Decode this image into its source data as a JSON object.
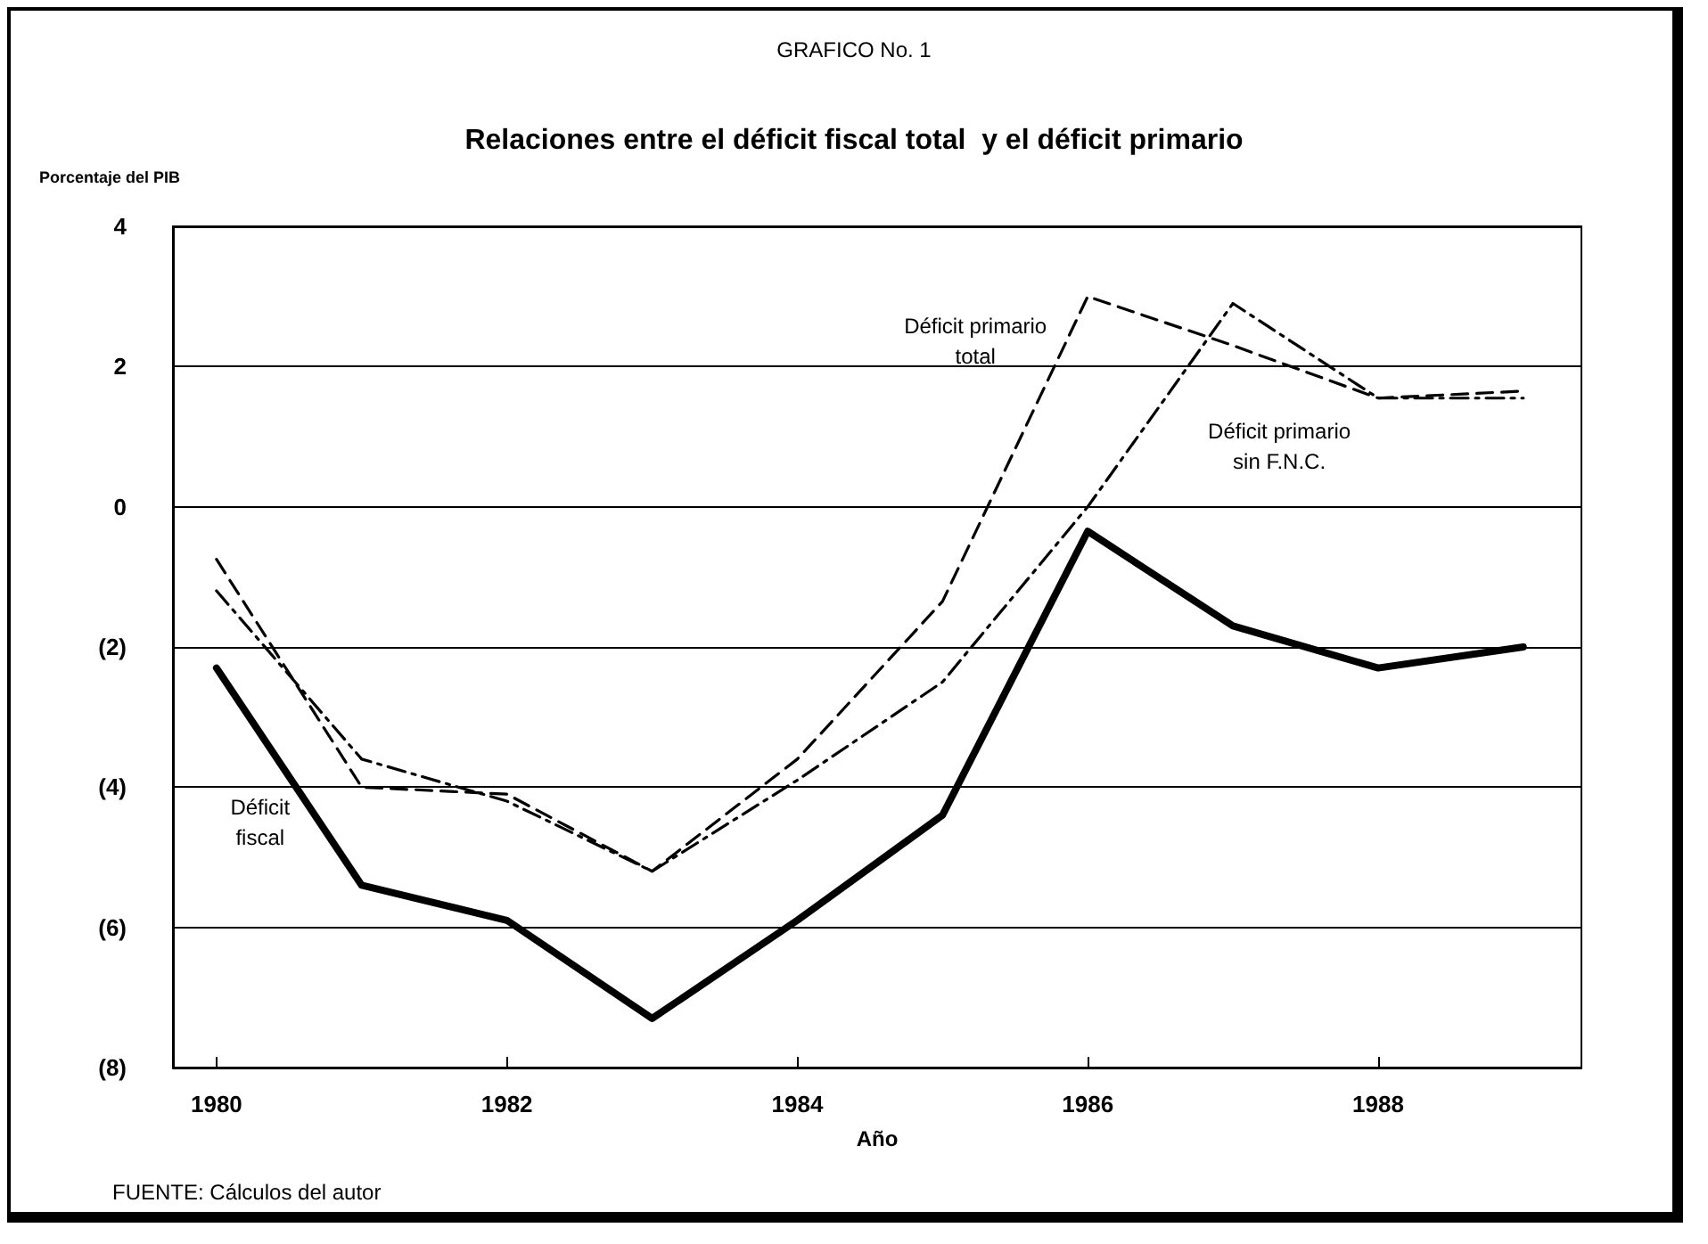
{
  "chart_data": {
    "type": "line",
    "subtitle": "GRAFICO No. 1",
    "title": "Relaciones entre el déficit fiscal total  y el déficit primario",
    "ylabel": "Porcentaje del PIB",
    "xlabel": "Año",
    "annotations": [
      "FUENTE: Cálculos del autor"
    ],
    "x": [
      1980,
      1981,
      1982,
      1983,
      1984,
      1985,
      1986,
      1987,
      1988,
      1989
    ],
    "series": [
      {
        "name": "Déficit fiscal",
        "color": "#000000",
        "line_style": "solid",
        "values": [
          -2.3,
          -5.4,
          -5.9,
          -7.3,
          -5.9,
          -4.4,
          -0.35,
          -1.7,
          -2.3,
          -2.0
        ]
      },
      {
        "name": "Déficit primario total",
        "color": "#000000",
        "line_style": "dashed",
        "values": [
          -0.75,
          -4.0,
          -4.1,
          -5.2,
          -3.6,
          -1.35,
          3.0,
          2.3,
          1.55,
          1.65
        ]
      },
      {
        "name": "Déficit primario sin F.N.C.",
        "color": "#000000",
        "line_style": "dashdot",
        "values": [
          -1.2,
          -3.6,
          -4.2,
          -5.2,
          -3.9,
          -2.5,
          0.0,
          2.9,
          1.55,
          1.55
        ]
      }
    ],
    "xlim": [
      1979.7,
      1989.4
    ],
    "xticks": [
      1980,
      1982,
      1984,
      1986,
      1988
    ],
    "ylim": [
      -8,
      4
    ],
    "yticks": [
      {
        "value": -8,
        "label": "(8)"
      },
      {
        "value": -6,
        "label": "(6)"
      },
      {
        "value": -4,
        "label": "(4)"
      },
      {
        "value": -2,
        "label": "(2)"
      },
      0,
      2,
      4
    ],
    "grid": "y",
    "marker": "none",
    "legend": false
  }
}
